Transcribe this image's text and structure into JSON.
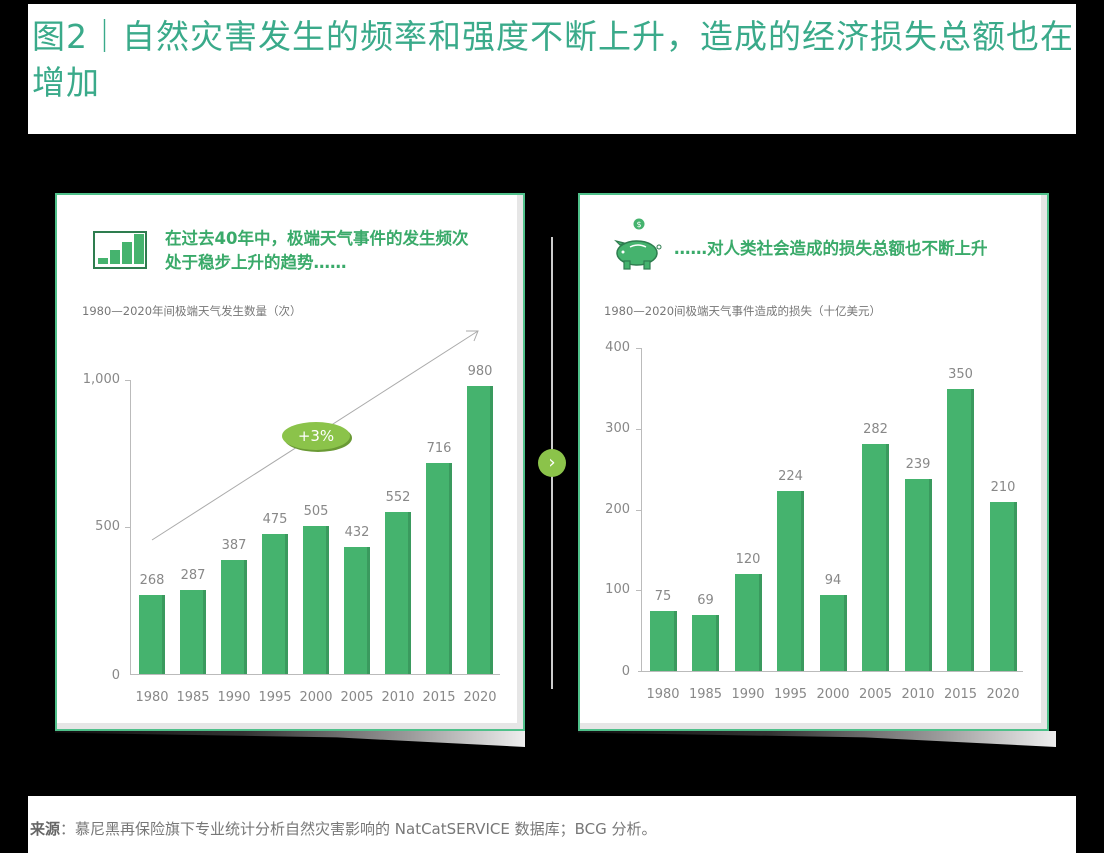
{
  "title": "图2｜自然灾害发生的频率和强度不断上升，造成的经济损失总额也在增加",
  "left_panel": {
    "headline_line1": "在过去40年中，极端天气事件的发生频次",
    "headline_line2": "处于稳步上升的趋势……",
    "subtitle": "1980—2020年间极端天气发生数量（次）",
    "icon": "bar-chart-icon",
    "growth_badge": "+3%"
  },
  "right_panel": {
    "headline": "……对人类社会造成的损失总额也不断上升",
    "subtitle": "1980—2020间极端天气事件造成的损失（十亿美元）",
    "icon": "piggy-bank-icon"
  },
  "next_icon": "chevron-right-icon",
  "source": {
    "label": "来源",
    "text": "：慕尼黑再保险旗下专业统计分析自然灾害影响的 NatCatSERVICE 数据库；BCG 分析。"
  },
  "colors": {
    "bar": "#45b36e",
    "title": "#3aaa8a",
    "badge": "#8bc34a"
  },
  "chart_data": [
    {
      "type": "bar",
      "title": "1980—2020年间极端天气发生数量（次）",
      "categories": [
        "1980",
        "1985",
        "1990",
        "1995",
        "2000",
        "2005",
        "2010",
        "2015",
        "2020"
      ],
      "values": [
        268,
        287,
        387,
        475,
        505,
        432,
        552,
        716,
        980
      ],
      "yticks": [
        "0",
        "500",
        "1,000"
      ],
      "ylim": [
        0,
        1000
      ],
      "annotation": "+3%",
      "xlabel": "",
      "ylabel": "",
      "grid": false
    },
    {
      "type": "bar",
      "title": "1980—2020间极端天气事件造成的损失（十亿美元）",
      "categories": [
        "1980",
        "1985",
        "1990",
        "1995",
        "2000",
        "2005",
        "2010",
        "2015",
        "2020"
      ],
      "values": [
        75,
        69,
        120,
        224,
        94,
        282,
        239,
        350,
        210
      ],
      "yticks": [
        "0",
        "100",
        "200",
        "300",
        "400"
      ],
      "ylim": [
        0,
        400
      ],
      "xlabel": "",
      "ylabel": "",
      "grid": false
    }
  ]
}
